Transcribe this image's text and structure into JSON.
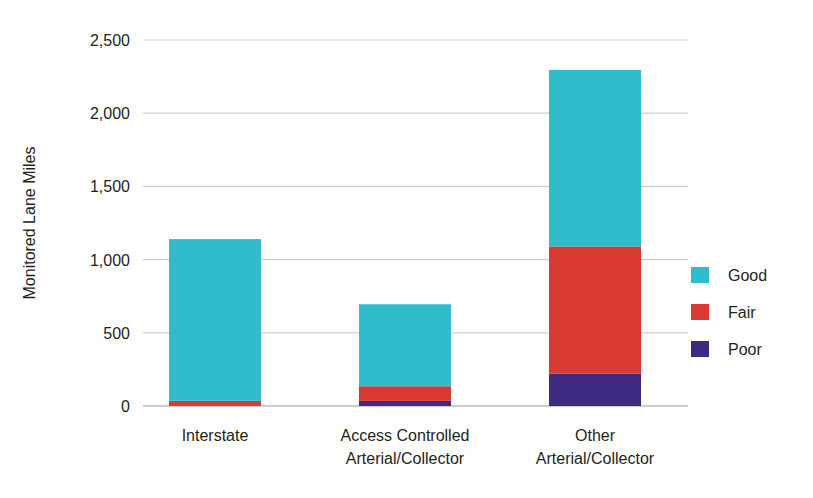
{
  "chart_data": {
    "type": "bar",
    "stacked": true,
    "grid": true,
    "legend": "right",
    "y_label": "Monitored Lane Miles",
    "categories": [
      "Interstate",
      "Access Controlled\nArterial/Collector",
      "Other\nArterial/Collector"
    ],
    "series": [
      {
        "name": "Poor",
        "color": "#3f2a82",
        "values": [
          0,
          35,
          220
        ]
      },
      {
        "name": "Fair",
        "color": "#d93a32",
        "values": [
          35,
          100,
          870
        ]
      },
      {
        "name": "Good",
        "color": "#30bccb",
        "values": [
          1105,
          560,
          1205
        ]
      }
    ],
    "ylim": [
      0,
      2500
    ],
    "yticks": [
      0,
      500,
      {
        "value": 1000,
        "label": "1,000"
      },
      {
        "value": 1500,
        "label": "1,500"
      },
      {
        "value": 2000,
        "label": "2,000"
      },
      {
        "value": 2500,
        "label": "2,500"
      }
    ]
  }
}
